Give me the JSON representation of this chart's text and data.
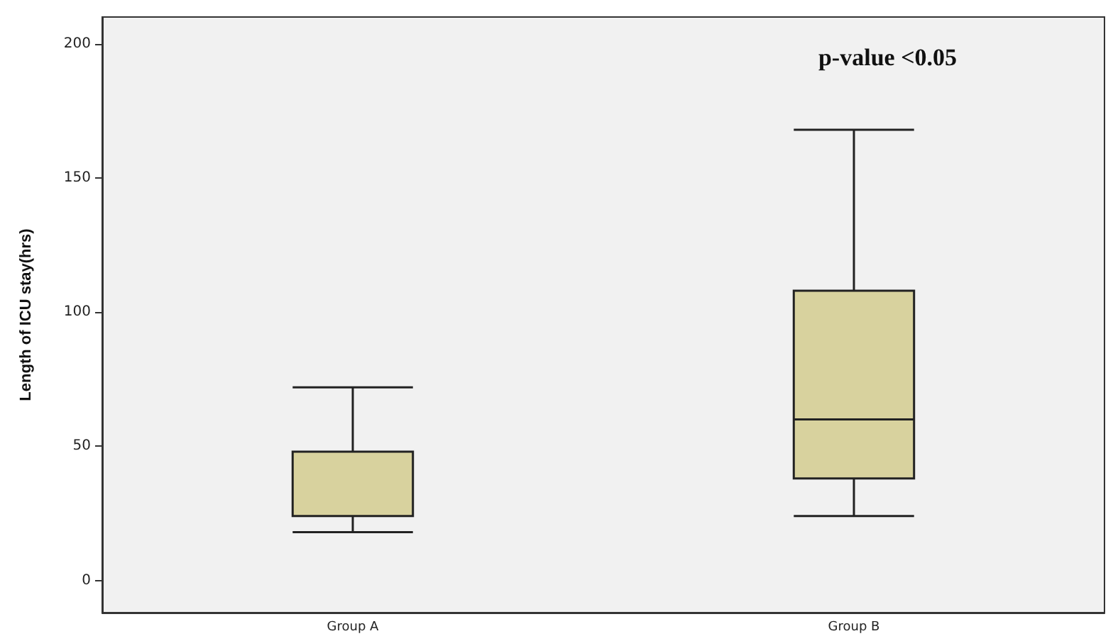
{
  "chart_data": {
    "type": "box",
    "ylabel": "Length of ICU stay(hrs)",
    "categories": [
      "Group A",
      "Group B"
    ],
    "boxes": [
      {
        "low": 18,
        "q1": 24,
        "median": 24,
        "q3": 48,
        "high": 72
      },
      {
        "low": 24,
        "q1": 38,
        "median": 60,
        "q3": 108,
        "high": 168
      }
    ],
    "color": "#d8d29e",
    "ylim": [
      -12,
      210
    ],
    "yticks": [
      0,
      50,
      100,
      150,
      200
    ],
    "grid": false,
    "annotations": [
      "p-value <0.05"
    ]
  }
}
